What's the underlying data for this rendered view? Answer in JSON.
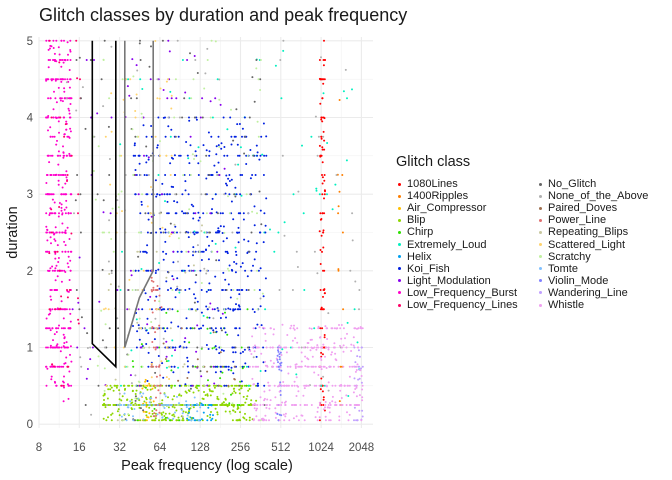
{
  "chart_data": {
    "type": "scatter",
    "title": "Glitch classes by duration and peak frequency",
    "xlabel": "Peak frequency (log scale)",
    "ylabel": "duration",
    "x_scale": "log2",
    "xlim": [
      8,
      2500
    ],
    "ylim": [
      -0.05,
      5.05
    ],
    "x_ticks": [
      "8",
      "16",
      "32",
      "64",
      "128",
      "256",
      "512",
      "1024",
      "2048"
    ],
    "y_ticks": [
      "0",
      "1",
      "2",
      "3",
      "4",
      "5"
    ],
    "grid": true,
    "legend_title": "Glitch class",
    "legend_position": "right",
    "series": [
      {
        "name": "1080Lines",
        "color": "#ff0000",
        "x_range": [
          1000,
          1100
        ],
        "y_range": [
          0.05,
          5.0
        ],
        "n": 110
      },
      {
        "name": "1400Ripples",
        "color": "#ff7f00",
        "x_range": [
          1300,
          1500
        ],
        "y_range": [
          0.05,
          4.5
        ],
        "n": 14
      },
      {
        "name": "Air_Compressor",
        "color": "#ffbf00",
        "x_range": [
          47,
          58
        ],
        "y_range": [
          0.05,
          0.6
        ],
        "n": 40
      },
      {
        "name": "Blip",
        "color": "#8ed600",
        "x_range": [
          24,
          340
        ],
        "y_range": [
          0.05,
          0.5
        ],
        "n": 420
      },
      {
        "name": "Chirp",
        "color": "#2ee000",
        "x_range": [
          40,
          300
        ],
        "y_range": [
          0.05,
          1.5
        ],
        "n": 60
      },
      {
        "name": "Extremely_Loud",
        "color": "#00f0c0",
        "x_range": [
          30,
          2000
        ],
        "y_range": [
          0.3,
          5.0
        ],
        "n": 100
      },
      {
        "name": "Helix",
        "color": "#00a0f0",
        "x_range": [
          100,
          160
        ],
        "y_range": [
          0.05,
          0.3
        ],
        "n": 40
      },
      {
        "name": "Koi_Fish",
        "color": "#0020e0",
        "x_range": [
          40,
          400
        ],
        "y_range": [
          0.5,
          4.0
        ],
        "n": 550
      },
      {
        "name": "Light_Modulation",
        "color": "#8800ee",
        "x_range": [
          14,
          200
        ],
        "y_range": [
          0.5,
          5.0
        ],
        "n": 90
      },
      {
        "name": "Low_Frequency_Burst",
        "color": "#ff00cc",
        "x_range": [
          9,
          14
        ],
        "y_range": [
          0.3,
          5.0
        ],
        "n": 450
      },
      {
        "name": "Low_Frequency_Lines",
        "color": "#ff0066",
        "x_range": [
          9.5,
          17
        ],
        "y_range": [
          0.3,
          5.0
        ],
        "n": 40
      },
      {
        "name": "No_Glitch",
        "color": "#666666",
        "x_range": [
          15,
          400
        ],
        "y_range": [
          0.05,
          5.0
        ],
        "n": 120
      },
      {
        "name": "None_of_the_Above",
        "color": "#b0b0b0",
        "x_range": [
          12,
          2000
        ],
        "y_range": [
          0.05,
          5.0
        ],
        "n": 100
      },
      {
        "name": "Paired_Doves",
        "color": "#a07050",
        "x_range": [
          60,
          250
        ],
        "y_range": [
          0.2,
          1.5
        ],
        "n": 20
      },
      {
        "name": "Power_Line",
        "color": "#e07070",
        "x_range": [
          55,
          66
        ],
        "y_range": [
          0.05,
          2.0
        ],
        "n": 60
      },
      {
        "name": "Repeating_Blips",
        "color": "#c8c8a0",
        "x_range": [
          24,
          150
        ],
        "y_range": [
          0.05,
          3.0
        ],
        "n": 50
      },
      {
        "name": "Scattered_Light",
        "color": "#ffd36e",
        "x_range": [
          24,
          80
        ],
        "y_range": [
          0.5,
          5.0
        ],
        "n": 60
      },
      {
        "name": "Scratchy",
        "color": "#c0f0a0",
        "x_range": [
          20,
          400
        ],
        "y_range": [
          0.05,
          5.0
        ],
        "n": 120
      },
      {
        "name": "Tomte",
        "color": "#80c0ff",
        "x_range": [
          30,
          130
        ],
        "y_range": [
          0.05,
          0.4
        ],
        "n": 70
      },
      {
        "name": "Violin_Mode",
        "color": "#8080ff",
        "x_range": [
          480,
          520
        ],
        "y_range": [
          0.05,
          1.0
        ],
        "n": 40
      },
      {
        "name": "Wandering_Line",
        "color": "#c0a0ff",
        "x_range": [
          1800,
          2100
        ],
        "y_range": [
          0.05,
          1.0
        ],
        "n": 30
      },
      {
        "name": "Whistle",
        "color": "#f0a0f0",
        "x_range": [
          300,
          2100
        ],
        "y_range": [
          0.05,
          1.3
        ],
        "n": 380
      }
    ],
    "overlay_lines": [
      {
        "color": "#000000",
        "points": [
          [
            20,
            5.0
          ],
          [
            20,
            1.05
          ],
          [
            30,
            0.75
          ],
          [
            30,
            5.0
          ]
        ]
      },
      {
        "color": "#777777",
        "points": [
          [
            35,
            5.0
          ],
          [
            35,
            1.0
          ],
          [
            45,
            1.65
          ],
          [
            57,
            2.0
          ],
          [
            57,
            5.0
          ]
        ]
      }
    ]
  }
}
